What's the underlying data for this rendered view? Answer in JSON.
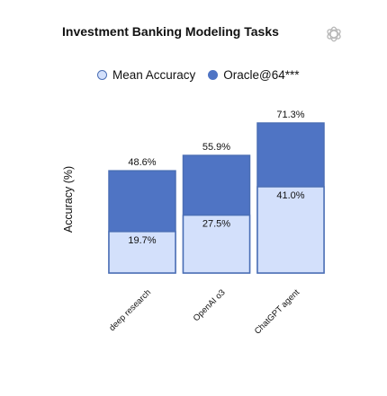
{
  "chart_data": {
    "type": "bar",
    "title": "Investment Banking Modeling Tasks",
    "ylabel": "Accuracy (%)",
    "xlabel": "",
    "categories": [
      "deep research",
      "OpenAI o3",
      "ChatGPT agent"
    ],
    "series": [
      {
        "name": "Mean Accuracy",
        "values": [
          19.7,
          27.5,
          41.0
        ],
        "labels": [
          "19.7%",
          "27.5%",
          "41.0%"
        ],
        "color": "#d3e0fb"
      },
      {
        "name": "Oracle@64***",
        "values": [
          48.6,
          55.9,
          71.3
        ],
        "labels": [
          "48.6%",
          "55.9%",
          "71.3%"
        ],
        "color": "#4f74c4"
      }
    ],
    "ylim": [
      0,
      80
    ],
    "grid": false,
    "legend_position": "top",
    "colors": {
      "outline": "#4b6fb5",
      "text": "#111111"
    }
  }
}
